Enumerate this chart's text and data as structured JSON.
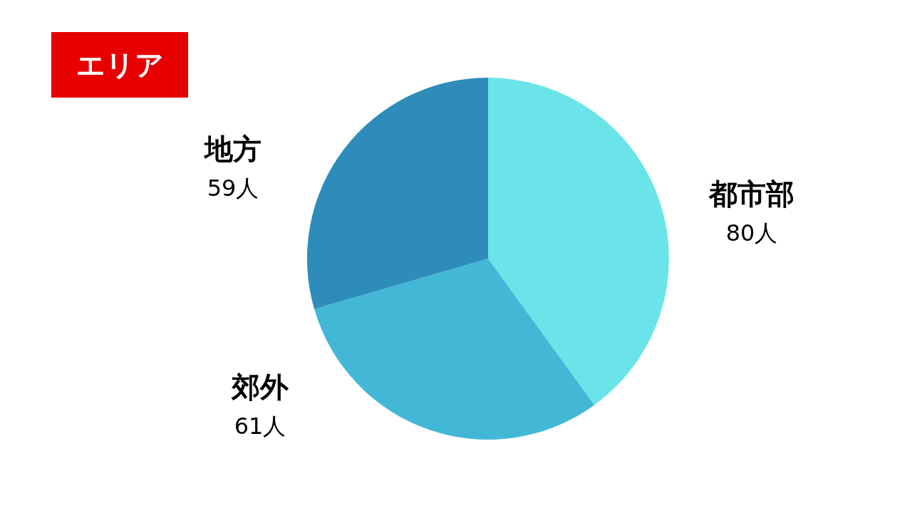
{
  "chart_data": {
    "type": "pie",
    "title": "エリア",
    "categories": [
      "都市部",
      "郊外",
      "地方"
    ],
    "values": [
      80,
      61,
      59
    ],
    "colors": [
      "#6ae4e8",
      "#42b8d6",
      "#2e8cba"
    ],
    "value_labels": [
      "80人",
      "61人",
      "59人"
    ]
  }
}
